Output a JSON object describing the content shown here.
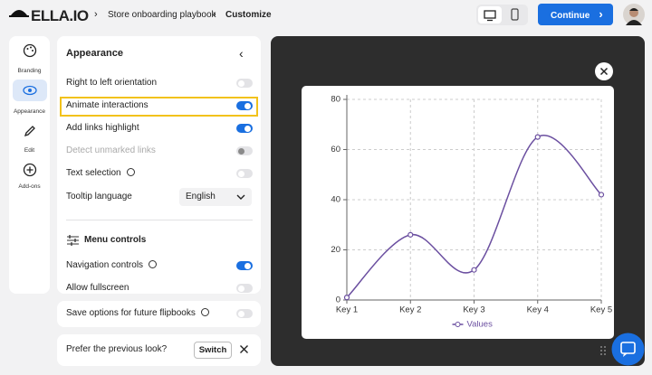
{
  "header": {
    "logo": "ELLA.IO",
    "breadcrumb": [
      "Store onboarding playbook",
      "Customize"
    ],
    "continue": "Continue"
  },
  "sidebar": [
    "Branding",
    "Appearance",
    "Edit",
    "Add-ons"
  ],
  "panel": {
    "title": "Appearance",
    "settings": [
      {
        "label": "Right to left orientation",
        "on": false
      },
      {
        "label": "Animate interactions",
        "on": true
      },
      {
        "label": "Add links highlight",
        "on": true
      },
      {
        "label": "Detect unmarked links",
        "on": false,
        "disabled": true
      },
      {
        "label": "Text selection",
        "on": false
      }
    ],
    "tooltip_language": {
      "label": "Tooltip language",
      "value": "English"
    },
    "menu_controls": {
      "title": "Menu controls",
      "settings": [
        {
          "label": "Navigation controls",
          "on": true
        },
        {
          "label": "Allow fullscreen",
          "on": false
        }
      ]
    }
  },
  "save": {
    "label": "Save options for future flipbooks",
    "on": false
  },
  "prefer": {
    "label": "Prefer the previous look?",
    "button": "Switch"
  },
  "chart_data": {
    "type": "line",
    "categories": [
      "Key 1",
      "Key 2",
      "Key 3",
      "Key 4",
      "Key 5"
    ],
    "series": [
      {
        "name": "Values",
        "color": "#6b4fa0",
        "values": [
          1,
          26,
          12,
          65,
          42
        ]
      }
    ],
    "ylim": [
      0,
      80
    ],
    "yticks": [
      0,
      20,
      40,
      60,
      80
    ],
    "grid": true,
    "legend": "bottom",
    "smooth": true
  }
}
